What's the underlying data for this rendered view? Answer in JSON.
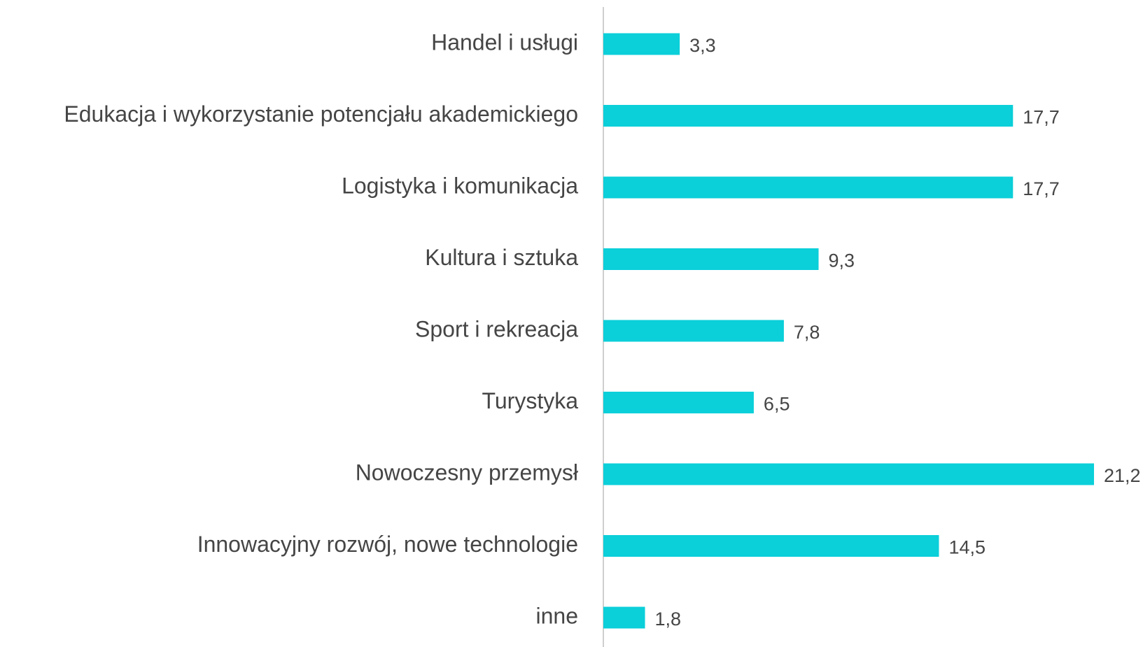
{
  "chart_data": {
    "type": "bar",
    "orientation": "horizontal",
    "categories": [
      "Handel i usługi",
      "Edukacja i wykorzystanie potencjału akademickiego",
      "Logistyka i komunikacja",
      "Kultura i sztuka",
      "Sport i rekreacja",
      "Turystyka",
      "Nowoczesny przemysł",
      "Innowacyjny rozwój, nowe technologie",
      "inne"
    ],
    "values": [
      3.3,
      17.7,
      17.7,
      9.3,
      7.8,
      6.5,
      21.2,
      14.5,
      1.8
    ],
    "value_labels": [
      "3,3",
      "17,7",
      "17,7",
      "9,3",
      "7,8",
      "6,5",
      "21,2",
      "14,5",
      "1,8"
    ],
    "color": "#0bcfd9"
  }
}
